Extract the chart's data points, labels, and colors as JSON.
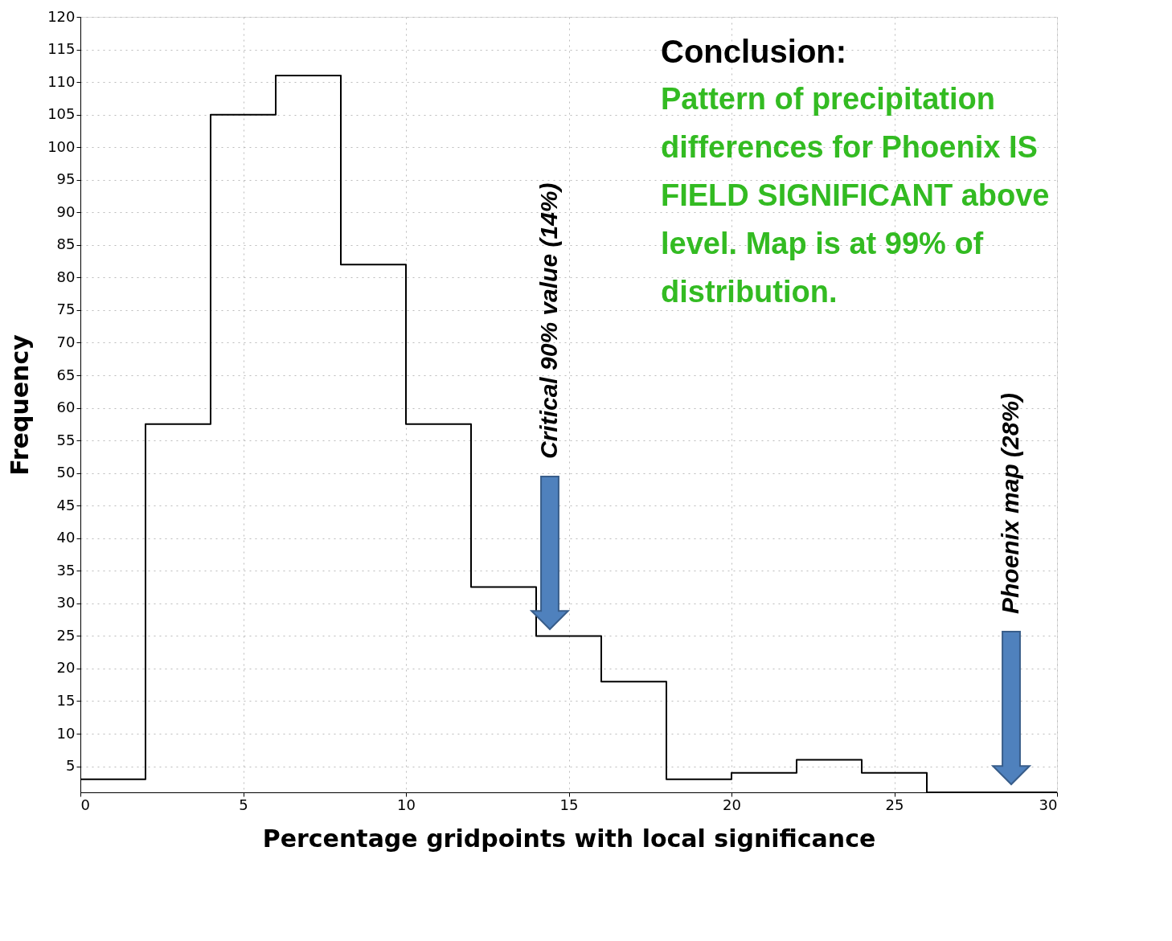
{
  "chart_data": {
    "type": "histogram",
    "xlabel": "Percentage  gridpoints  with  local  significance",
    "ylabel": "Frequency",
    "bins": [
      0,
      2,
      4,
      6,
      8,
      10,
      12,
      14,
      16,
      18,
      20,
      22,
      24,
      26,
      28,
      30
    ],
    "values": [
      3,
      57.5,
      105,
      111,
      82,
      57.5,
      32.5,
      25,
      18,
      3,
      4,
      6,
      4,
      1,
      1
    ],
    "color": "#000000",
    "xlim": [
      0,
      30
    ],
    "xticks": [
      0,
      5,
      10,
      15,
      20,
      25,
      30
    ],
    "ylim": [
      1,
      120
    ],
    "yticks": [
      5,
      10,
      15,
      20,
      25,
      30,
      35,
      40,
      45,
      50,
      55,
      60,
      65,
      70,
      75,
      80,
      85,
      90,
      95,
      100,
      105,
      110,
      115,
      120
    ],
    "grid": true,
    "annotations": [
      "Critical  90% value (14%)",
      "Phoenix map (28%)",
      "Conclusion:",
      "Pattern of precipitation\ndifferences for Phoenix IS\nFIELD SIGNIFICANT above\nlevel.  Map is at 99% of\ndistribution."
    ]
  }
}
